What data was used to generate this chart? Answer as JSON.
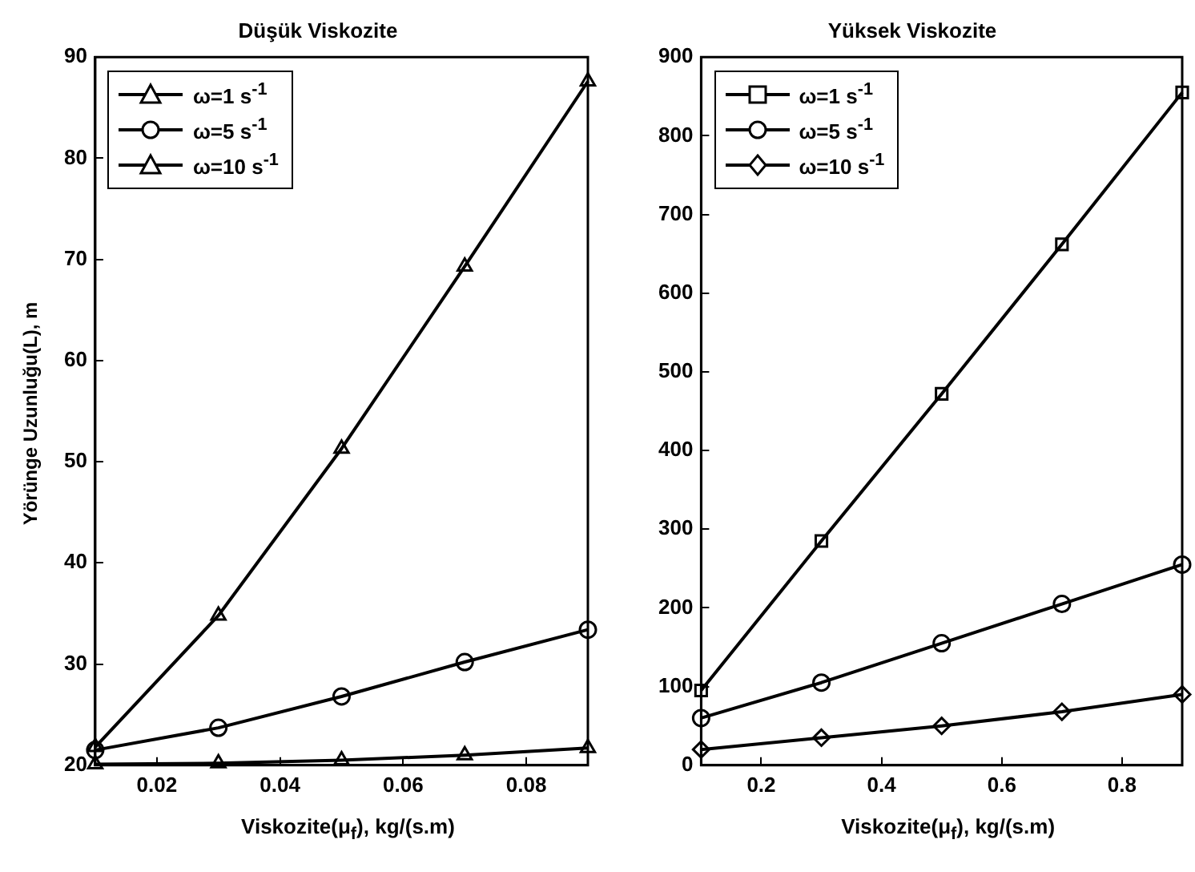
{
  "chart_data": [
    {
      "type": "line",
      "title": "Düşük Viskozite",
      "xlabel": "Viskozite(μ$_{f}$), kg/(s.m)",
      "ylabel": "Yörünge Uzunluğu(L), m",
      "x": [
        0.01,
        0.03,
        0.05,
        0.07,
        0.09
      ],
      "xlim": [
        0.01,
        0.09
      ],
      "xticks": [
        0.02,
        0.04,
        0.06,
        0.08
      ],
      "ylim": [
        20,
        90
      ],
      "yticks": [
        20,
        30,
        40,
        50,
        60,
        70,
        80,
        90
      ],
      "grid": false,
      "legend": "top left",
      "line_style": "solid",
      "series": [
        {
          "name": "ω=1 s$^{-1}$",
          "color": "#000000",
          "marker": "triangle",
          "values": [
            21.8,
            34.8,
            51.3,
            69.3,
            87.6
          ]
        },
        {
          "name": "ω=5 s$^{-1}$",
          "color": "#000000",
          "marker": "circle",
          "values": [
            21.5,
            23.7,
            26.8,
            30.2,
            33.4
          ]
        },
        {
          "name": "ω=10 s$^{-1}$",
          "color": "#000000",
          "marker": "triangle",
          "values": [
            20.1,
            20.2,
            20.5,
            21.0,
            21.7
          ]
        }
      ]
    },
    {
      "type": "line",
      "title": "Yüksek Viskozite",
      "xlabel": "Viskozite(μ$_{f}$), kg/(s.m)",
      "x": [
        0.1,
        0.3,
        0.5,
        0.7,
        0.9
      ],
      "xlim": [
        0.1,
        0.9
      ],
      "xticks": [
        0.2,
        0.4,
        0.6,
        0.8
      ],
      "ylim": [
        0,
        900
      ],
      "yticks": [
        0,
        100,
        200,
        300,
        400,
        500,
        600,
        700,
        800,
        900
      ],
      "grid": false,
      "legend": "top left",
      "line_style": "solid",
      "series": [
        {
          "name": "ω=1 s$^{-1}$",
          "color": "#000000",
          "marker": "square",
          "values": [
            95,
            285,
            472,
            662,
            855
          ]
        },
        {
          "name": "ω=5 s$^{-1}$",
          "color": "#000000",
          "marker": "circle",
          "values": [
            60,
            105,
            155,
            205,
            255
          ]
        },
        {
          "name": "ω=10 s$^{-1}$",
          "color": "#000000",
          "marker": "diamond",
          "values": [
            20,
            35,
            50,
            68,
            90
          ]
        }
      ]
    }
  ]
}
